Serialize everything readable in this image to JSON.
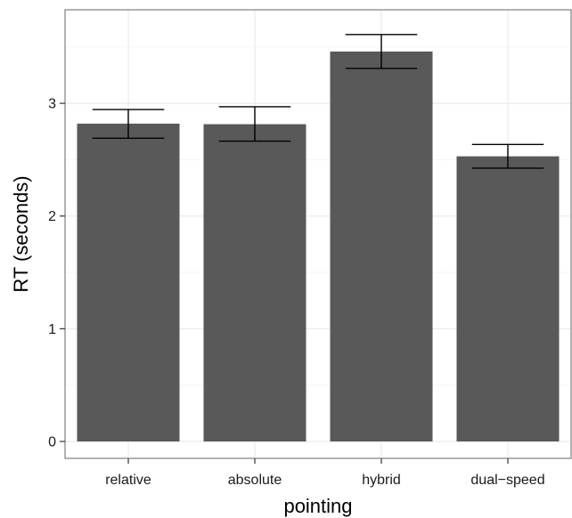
{
  "chart_data": {
    "type": "bar",
    "categories": [
      "relative",
      "absolute",
      "hybrid",
      "dual−speed"
    ],
    "values": [
      2.82,
      2.815,
      3.46,
      2.53
    ],
    "error_low": [
      2.69,
      2.665,
      3.31,
      2.425
    ],
    "error_high": [
      2.945,
      2.97,
      3.61,
      2.635
    ],
    "xlabel": "pointing",
    "ylabel": "RT (seconds)",
    "ylim": [
      -0.15,
      3.83
    ],
    "yticks": [
      0,
      1,
      2,
      3
    ],
    "ytick_labels": [
      "0",
      "1",
      "2",
      "3"
    ],
    "grid": true,
    "colors": {
      "bar": "#595959",
      "panel_bg": "#ffffff",
      "grid_major": "#ebebeb",
      "grid_minor": "#f5f5f5",
      "border": "#7f7f7f",
      "errorbar": "#000000"
    }
  }
}
